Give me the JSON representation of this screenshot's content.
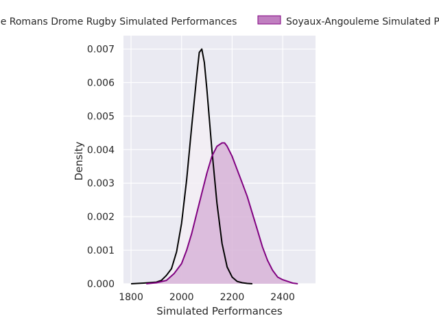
{
  "chart_data": {
    "type": "area",
    "title": "",
    "xlabel": "Simulated Performances",
    "ylabel": "Density",
    "xlim": [
      1770,
      2530
    ],
    "ylim": [
      0,
      0.0074
    ],
    "xticks": [
      1800,
      2000,
      2200,
      2400
    ],
    "yticks": [
      0.0,
      0.001,
      0.002,
      0.003,
      0.004,
      0.005,
      0.006,
      0.007
    ],
    "xtick_labels": [
      "1800",
      "2000",
      "2200",
      "2400"
    ],
    "ytick_labels": [
      "0.000",
      "0.001",
      "0.002",
      "0.003",
      "0.004",
      "0.005",
      "0.006",
      "0.007"
    ],
    "grid": true,
    "legend_position": "top-center",
    "series": [
      {
        "name": "Valence Romans Drome Rugby Simulated Performances",
        "legend_text": "ce Romans Drome Rugby Simulated Performances",
        "color": "#000000",
        "filled": true,
        "fill_color": "#f3eef5",
        "x": [
          1800,
          1850,
          1900,
          1920,
          1940,
          1960,
          1980,
          2000,
          2020,
          2040,
          2060,
          2070,
          2080,
          2090,
          2100,
          2120,
          2140,
          2160,
          2180,
          2200,
          2220,
          2240,
          2260,
          2280
        ],
        "y": [
          0.0,
          2e-05,
          5e-05,
          0.0001,
          0.00025,
          0.00045,
          0.00095,
          0.0018,
          0.0031,
          0.0047,
          0.0062,
          0.0069,
          0.007,
          0.0066,
          0.0058,
          0.004,
          0.0024,
          0.0012,
          0.0005,
          0.0002,
          7e-05,
          3e-05,
          1e-05,
          0.0
        ]
      },
      {
        "name": "Soyaux-Angouleme Simulated Performances",
        "legend_text": "Soyaux-Angouleme Simulated Pe",
        "color": "#800080",
        "filled": true,
        "fill_color": "#d8b4d8",
        "x": [
          1860,
          1900,
          1940,
          1970,
          2000,
          2020,
          2040,
          2060,
          2080,
          2100,
          2120,
          2140,
          2160,
          2170,
          2180,
          2200,
          2220,
          2240,
          2260,
          2280,
          2300,
          2320,
          2340,
          2360,
          2380,
          2400,
          2420,
          2440,
          2460
        ],
        "y": [
          0.0,
          3e-05,
          0.0001,
          0.0003,
          0.0006,
          0.001,
          0.0015,
          0.0021,
          0.0027,
          0.0033,
          0.0038,
          0.0041,
          0.0042,
          0.0042,
          0.0041,
          0.0038,
          0.0034,
          0.003,
          0.0026,
          0.0021,
          0.0016,
          0.0011,
          0.0007,
          0.0004,
          0.0002,
          0.00012,
          7e-05,
          2e-05,
          0.0
        ]
      }
    ]
  }
}
